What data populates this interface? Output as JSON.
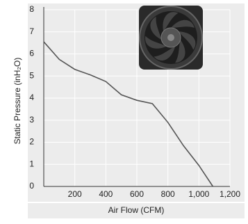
{
  "chart_data": {
    "type": "line",
    "x_label": "Air Flow (CFM)",
    "y_label": "Static Pressure (inH₂O)",
    "series": [
      {
        "color": "#555555",
        "x": [
          0,
          100,
          200,
          300,
          400,
          500,
          600,
          700,
          800,
          900,
          1000,
          1090
        ],
        "values": [
          6.55,
          5.75,
          5.3,
          5.05,
          4.75,
          4.15,
          3.9,
          3.75,
          2.9,
          1.85,
          0.95,
          0
        ]
      }
    ],
    "xlim": [
      0,
      1200
    ],
    "xticks": [
      200,
      400,
      600,
      {
        "value": 800,
        "label": "800"
      },
      {
        "value": 1000,
        "label": "1,000"
      },
      {
        "value": 1200,
        "label": "1,200"
      }
    ],
    "ylim": [
      0,
      8
    ],
    "yticks": [
      0,
      1,
      2,
      3,
      4,
      5,
      6,
      7,
      8
    ],
    "grid": true
  }
}
